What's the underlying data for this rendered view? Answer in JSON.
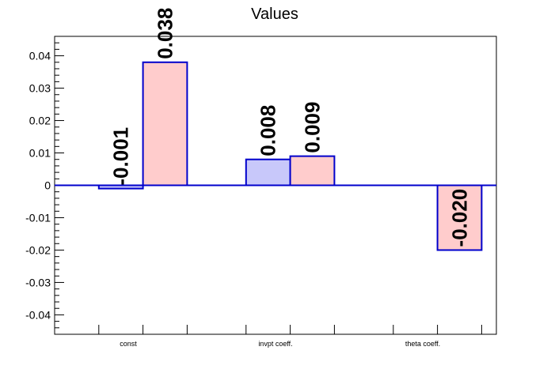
{
  "chart_data": {
    "type": "bar",
    "title": "Values",
    "xlabel": "",
    "ylabel": "",
    "categories": [
      "const",
      "invpt coeff.",
      "theta coeff."
    ],
    "ylim": [
      -0.046,
      0.046
    ],
    "yticks": [
      -0.04,
      -0.03,
      -0.02,
      -0.01,
      0,
      0.01,
      0.02,
      0.03,
      0.04
    ],
    "ytick_labels": [
      "-0.04",
      "-0.03",
      "-0.02",
      "-0.01",
      "0",
      "0.01",
      "0.02",
      "0.03",
      "0.04"
    ],
    "grid": false,
    "legend": "none",
    "series": [
      {
        "color_fill": "#c8c8fa",
        "color_edge": "#0000cc",
        "values": [
          -0.001,
          0.008,
          null
        ],
        "labels": [
          "-0.001",
          "0.008",
          ""
        ]
      },
      {
        "color_fill": "#ffcccc",
        "color_edge": "#0000cc",
        "values": [
          0.038,
          0.009,
          -0.02
        ],
        "labels": [
          "0.038",
          "0.009",
          "-0.020"
        ]
      }
    ],
    "zero_line_color": "#0000cc"
  }
}
